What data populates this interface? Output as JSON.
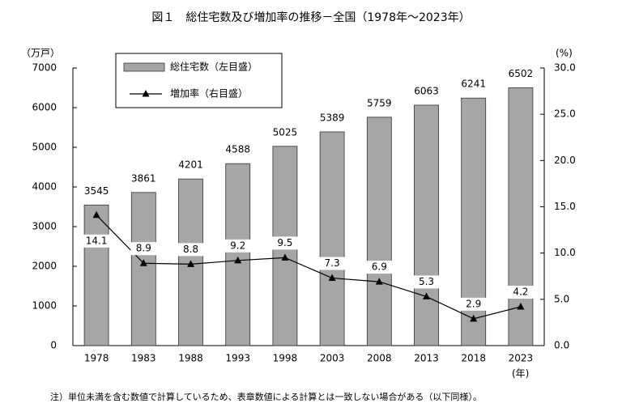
{
  "chart_data": {
    "type": "bar",
    "title": "図１　総住宅数及び増加率の推移－全国（1978年～2023年）",
    "y_label": "（万戸）",
    "y2_label": "(%)",
    "x_label": "(年)",
    "note": "注）単位未満を含む数値で計算しているため、表章数値による計算とは一致しない場合がある（以下同様）。",
    "categories": [
      "1978",
      "1983",
      "1988",
      "1993",
      "1998",
      "2003",
      "2008",
      "2013",
      "2018",
      "2023"
    ],
    "series": [
      {
        "name": "総住宅数（左目盛）",
        "type": "bar",
        "color": "#a6a6a6",
        "values": [
          3545,
          3861,
          4201,
          4588,
          5025,
          5389,
          5759,
          6063,
          6241,
          6502
        ]
      },
      {
        "name": "増加率（右目盛）",
        "type": "line",
        "axis": "y2",
        "color": "#000000",
        "values": [
          14.1,
          8.9,
          8.8,
          9.2,
          9.5,
          7.3,
          6.9,
          5.3,
          2.9,
          4.2
        ]
      }
    ],
    "ylim": [
      0,
      7000
    ],
    "yticks": [
      0,
      1000,
      2000,
      3000,
      4000,
      5000,
      6000,
      7000
    ],
    "y2lim": [
      0,
      30
    ],
    "y2ticks": [
      {
        "value": 0,
        "label": "0.0"
      },
      {
        "value": 5,
        "label": "5.0"
      },
      {
        "value": 10,
        "label": "10.0"
      },
      {
        "value": 15,
        "label": "15.0"
      },
      {
        "value": 20,
        "label": "20.0"
      },
      {
        "value": 25,
        "label": "25.0"
      },
      {
        "value": 30,
        "label": "30.0"
      }
    ],
    "grid": false
  }
}
